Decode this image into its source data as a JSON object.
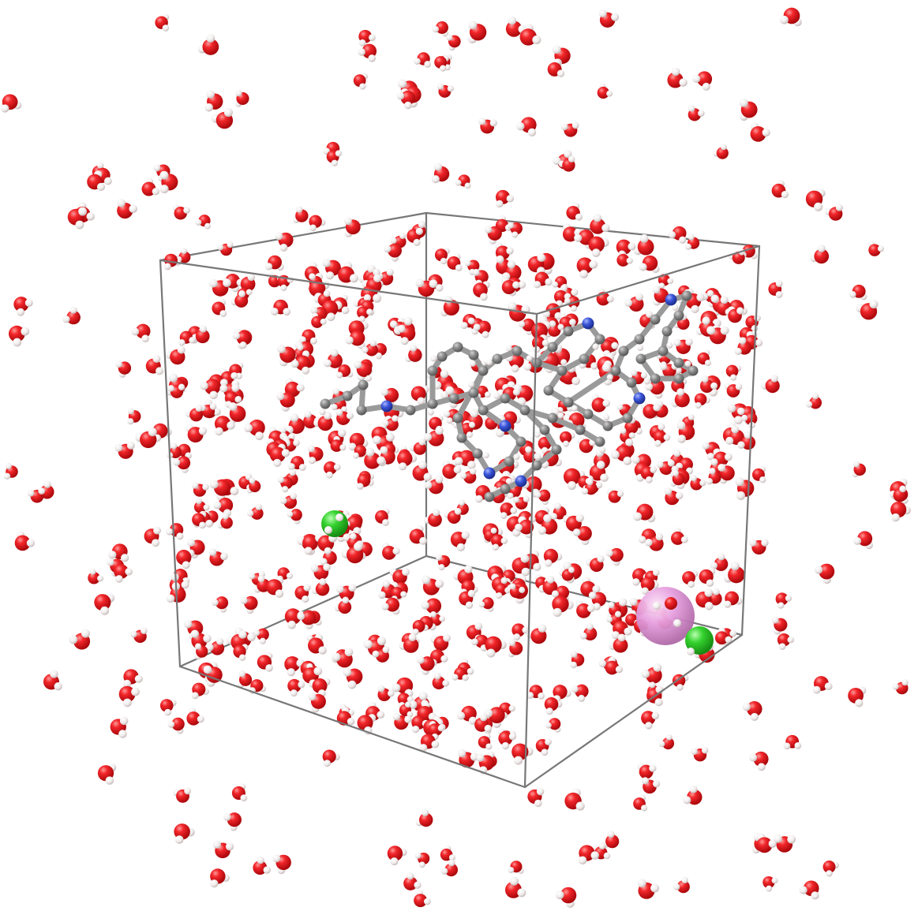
{
  "scene": {
    "background": "#ffffff",
    "colors": {
      "oxygen": "#e8161b",
      "hydrogen": "#f4f0f0",
      "carbon": "#8c8c8c",
      "nitrogen": "#3a55d8",
      "chloride": "#33cc33",
      "cation": "#e8a2e0",
      "box_edge": "#777777",
      "bond": "#9a9a9a"
    },
    "elements": {
      "water": "water-molecule",
      "chloride": "chloride-ion",
      "cation": "cation",
      "solute": "organic-solute-molecule",
      "box": "periodic-simulation-box"
    }
  }
}
